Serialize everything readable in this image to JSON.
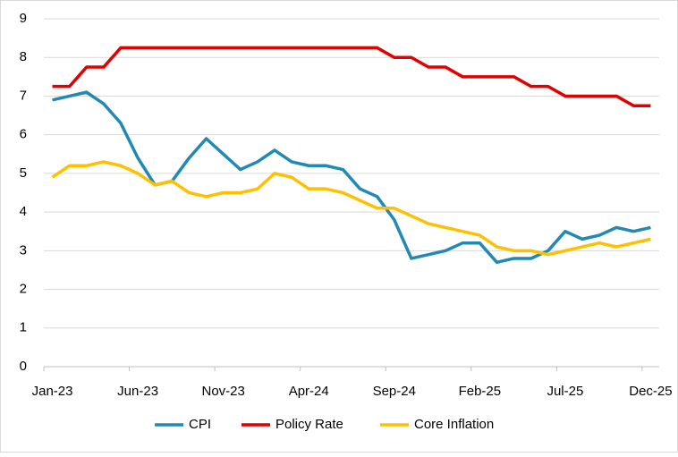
{
  "chart_data": {
    "type": "line",
    "categories": [
      "Jan-23",
      null,
      null,
      null,
      null,
      "Jun-23",
      null,
      null,
      null,
      null,
      "Nov-23",
      null,
      null,
      null,
      null,
      "Apr-24",
      null,
      null,
      null,
      null,
      "Sep-24",
      null,
      null,
      null,
      null,
      "Feb-25",
      null,
      null,
      null,
      null,
      "Jul-25",
      null,
      null,
      null,
      null,
      "Dec-25"
    ],
    "series": [
      {
        "name": "CPI",
        "color": "#2189b4",
        "values": [
          6.9,
          7.0,
          7.1,
          6.8,
          6.3,
          5.4,
          4.7,
          4.8,
          5.4,
          5.9,
          5.5,
          5.1,
          5.3,
          5.6,
          5.3,
          5.2,
          5.2,
          5.1,
          4.6,
          4.4,
          3.8,
          2.8,
          2.9,
          3.0,
          3.2,
          3.2,
          2.7,
          2.8,
          2.8,
          3.0,
          3.5,
          3.3,
          3.4,
          3.6,
          3.5,
          3.6
        ]
      },
      {
        "name": "Policy Rate",
        "color": "#e00000",
        "values": [
          7.25,
          7.25,
          7.75,
          7.75,
          8.25,
          8.25,
          8.25,
          8.25,
          8.25,
          8.25,
          8.25,
          8.25,
          8.25,
          8.25,
          8.25,
          8.25,
          8.25,
          8.25,
          8.25,
          8.25,
          8.0,
          8.0,
          7.75,
          7.75,
          7.5,
          7.5,
          7.5,
          7.5,
          7.25,
          7.25,
          7.0,
          7.0,
          7.0,
          7.0,
          6.75,
          6.75
        ]
      },
      {
        "name": "Core Inflation",
        "color": "#ffc000",
        "values": [
          4.9,
          5.2,
          5.2,
          5.3,
          5.2,
          5.0,
          4.7,
          4.8,
          4.5,
          4.4,
          4.5,
          4.5,
          4.6,
          5.0,
          4.9,
          4.6,
          4.6,
          4.5,
          4.3,
          4.1,
          4.1,
          3.9,
          3.7,
          3.6,
          3.5,
          3.4,
          3.1,
          3.0,
          3.0,
          2.9,
          3.0,
          3.1,
          3.2,
          3.1,
          3.2,
          3.3
        ]
      }
    ],
    "ylim": [
      0,
      9
    ],
    "yticks": [
      0,
      1,
      2,
      3,
      4,
      5,
      6,
      7,
      8,
      9
    ],
    "grid": true,
    "legend": "bottom"
  }
}
